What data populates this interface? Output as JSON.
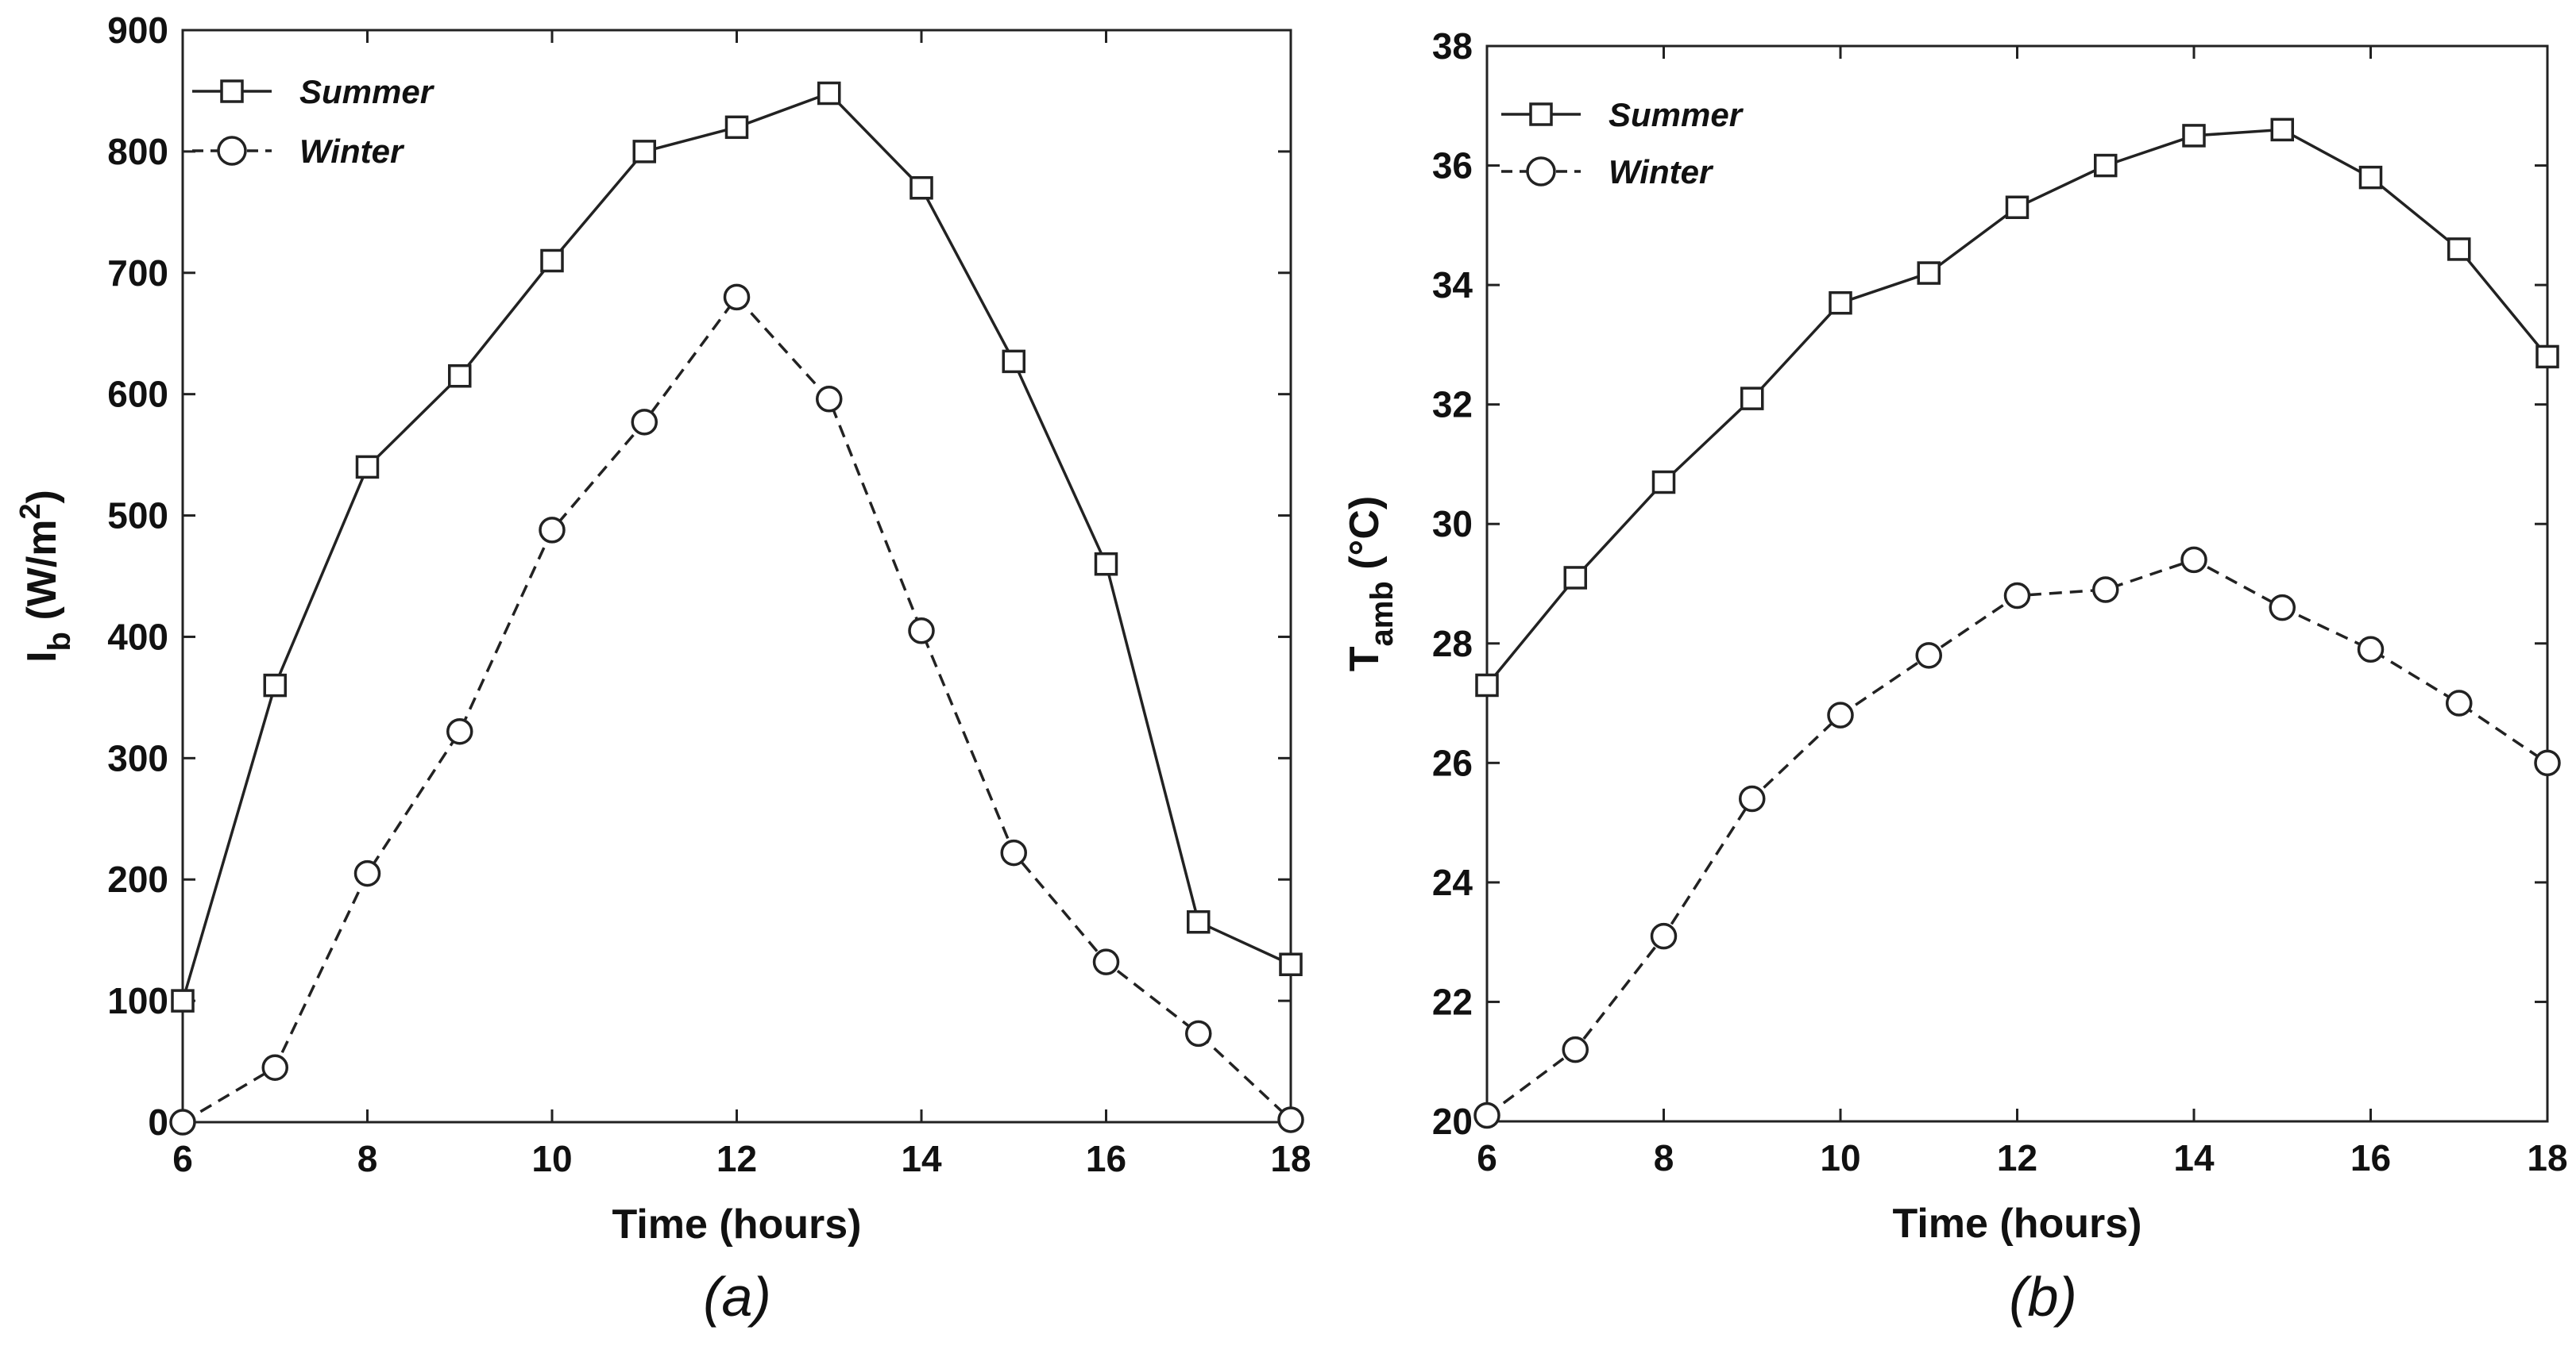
{
  "chart_data": [
    {
      "type": "line",
      "caption": "(a)",
      "xlabel": "Time (hours)",
      "ylabel_main": "I",
      "ylabel_sub": "b",
      "ylabel_unit_pre": " (W/m",
      "ylabel_unit_sup": "2",
      "ylabel_unit_post": ")",
      "xlim": [
        6,
        18
      ],
      "ylim": [
        0,
        900
      ],
      "xticks": [
        "6",
        "8",
        "10",
        "12",
        "14",
        "16",
        "18"
      ],
      "yticks": [
        "0",
        "100",
        "200",
        "300",
        "400",
        "500",
        "600",
        "700",
        "800",
        "900"
      ],
      "x": [
        6,
        7,
        8,
        9,
        10,
        11,
        12,
        13,
        14,
        15,
        16,
        17,
        18
      ],
      "legend_position": "top-left",
      "series": [
        {
          "name": "Summer",
          "marker": "square",
          "line": "solid",
          "values": [
            100,
            360,
            540,
            615,
            710,
            800,
            820,
            848,
            770,
            627,
            460,
            165,
            130
          ]
        },
        {
          "name": "Winter",
          "marker": "circle",
          "line": "dashed",
          "values": [
            0,
            45,
            205,
            322,
            488,
            577,
            680,
            596,
            405,
            222,
            132,
            73,
            2
          ]
        }
      ]
    },
    {
      "type": "line",
      "caption": "(b)",
      "xlabel": "Time (hours)",
      "ylabel_main": "T",
      "ylabel_sub": "amb",
      "ylabel_unit_pre": " (°C)",
      "ylabel_unit_sup": "",
      "ylabel_unit_post": "",
      "xlim": [
        6,
        18
      ],
      "ylim": [
        20,
        38
      ],
      "xticks": [
        "6",
        "8",
        "10",
        "12",
        "14",
        "16",
        "18"
      ],
      "yticks": [
        "20",
        "22",
        "24",
        "26",
        "28",
        "30",
        "32",
        "34",
        "36",
        "38"
      ],
      "x": [
        6,
        7,
        8,
        9,
        10,
        11,
        12,
        13,
        14,
        15,
        16,
        17,
        18
      ],
      "legend_position": "top-left",
      "series": [
        {
          "name": "Summer",
          "marker": "square",
          "line": "solid",
          "values": [
            27.3,
            29.1,
            30.7,
            32.1,
            33.7,
            34.2,
            35.3,
            36.0,
            36.5,
            36.6,
            35.8,
            34.6,
            32.8
          ]
        },
        {
          "name": "Winter",
          "marker": "circle",
          "line": "dashed",
          "values": [
            20.1,
            21.2,
            23.1,
            25.4,
            26.8,
            27.8,
            28.8,
            28.9,
            29.4,
            28.6,
            27.9,
            27.0,
            26.0
          ]
        }
      ]
    }
  ]
}
